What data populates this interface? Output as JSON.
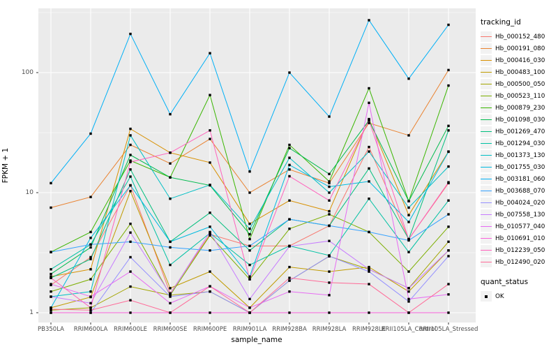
{
  "figure": {
    "y_axis": {
      "title": "FPKM + 1",
      "tick_labels": [
        "100",
        "10",
        "1"
      ],
      "tick_values": [
        100,
        10,
        1
      ]
    },
    "x_axis": {
      "title": "sample_name"
    },
    "legend": {
      "tracking_title": "tracking_id",
      "quant_title": "quant_status",
      "quant_items": [
        {
          "label": "OK",
          "marker": "black-square"
        }
      ]
    },
    "colors": {
      "panel_bg": "#EBEBEB",
      "grid_major": "#FFFFFF",
      "grid_minor": "#FFFFFF",
      "axis_text": "#4D4D4D",
      "axis_title": "#000000",
      "point": "#000000",
      "legend_key_bg": "#F2F2F2",
      "tick_mark": "#333333"
    }
  },
  "chart_data": {
    "type": "line",
    "title": "",
    "xlabel": "sample_name",
    "ylabel": "FPKM + 1",
    "y_scale": "log10",
    "ylim": [
      1,
      320
    ],
    "grid": true,
    "legend_position": "right",
    "point_marker": "black square (quant_status = OK)",
    "categories": [
      "PB350LA",
      "RRIM600LA",
      "RRIM600LE",
      "RRIM600SE",
      "RRIM600PE",
      "RRIM901LA",
      "RRIM928BA",
      "RRIM928LA",
      "RRIM928LE",
      "RRII105LA_Control",
      "RRII105LA_Stressed"
    ],
    "series": [
      {
        "name": "Hb_000152_480",
        "color": "#F8766D",
        "values": [
          1.7,
          2.9,
          11.5,
          1.45,
          4.5,
          3.6,
          3.6,
          5.3,
          24,
          4.1,
          12.0
        ]
      },
      {
        "name": "Hb_000191_080",
        "color": "#EA8331",
        "values": [
          7.5,
          9.2,
          25,
          17.5,
          28,
          10,
          15.6,
          12,
          38,
          30,
          105
        ]
      },
      {
        "name": "Hb_000416_030",
        "color": "#D89000",
        "values": [
          2.0,
          2.3,
          34,
          21.5,
          17.8,
          5.5,
          8.6,
          7.0,
          41,
          6.5,
          22
        ]
      },
      {
        "name": "Hb_000483_100",
        "color": "#C09B00",
        "values": [
          1.1,
          1.35,
          10.3,
          1.6,
          2.2,
          1.1,
          2.4,
          2.2,
          2.4,
          1.5,
          3.3
        ]
      },
      {
        "name": "Hb_000500_050",
        "color": "#A3A500",
        "values": [
          1.05,
          1.1,
          1.65,
          1.4,
          1.5,
          1.0,
          1.85,
          2.95,
          2.3,
          1.6,
          3.9
        ]
      },
      {
        "name": "Hb_000523_110",
        "color": "#7CAE00",
        "values": [
          1.5,
          1.9,
          5.5,
          1.4,
          4.4,
          1.9,
          5.0,
          6.6,
          4.7,
          2.2,
          5.2
        ]
      },
      {
        "name": "Hb_000879_230",
        "color": "#39B600",
        "values": [
          3.2,
          4.7,
          18.5,
          13.4,
          65,
          4.1,
          25,
          12.4,
          74,
          8.5,
          78
        ]
      },
      {
        "name": "Hb_001098_030",
        "color": "#00BB4E",
        "values": [
          2.1,
          3.5,
          20.6,
          13.4,
          11.5,
          4.5,
          23.5,
          14.3,
          40,
          8.5,
          36
        ]
      },
      {
        "name": "Hb_001269_470",
        "color": "#00BF7D",
        "values": [
          1.95,
          2.8,
          15.6,
          3.9,
          6.8,
          3.3,
          6.0,
          5.3,
          15.9,
          4.1,
          33
        ]
      },
      {
        "name": "Hb_001294_030",
        "color": "#00C1A3",
        "values": [
          2.3,
          3.7,
          13.6,
          2.5,
          4.6,
          2.5,
          3.6,
          3.0,
          8.9,
          3.2,
          8.6
        ]
      },
      {
        "name": "Hb_001373_130",
        "color": "#00BFC4",
        "values": [
          1.36,
          1.5,
          30,
          8.9,
          11.6,
          5.0,
          19.5,
          10,
          22,
          7.5,
          16.5
        ]
      },
      {
        "name": "Hb_001755_030",
        "color": "#00BAE0",
        "values": [
          1.1,
          4.2,
          11.5,
          3.9,
          5.2,
          2.0,
          17,
          11.2,
          12.4,
          5.7,
          21.9
        ]
      },
      {
        "name": "Hb_003181_060",
        "color": "#00B0F6",
        "values": [
          12,
          31,
          210,
          45,
          145,
          15,
          100,
          43,
          273,
          89,
          250
        ]
      },
      {
        "name": "Hb_003688_070",
        "color": "#35A2FF",
        "values": [
          3.2,
          3.7,
          3.9,
          3.5,
          3.3,
          3.6,
          6.0,
          5.3,
          4.7,
          4.0,
          6.6
        ]
      },
      {
        "name": "Hb_004024_020",
        "color": "#9590FF",
        "values": [
          1.0,
          1.0,
          2.9,
          1.36,
          1.5,
          1.0,
          1.85,
          2.96,
          2.2,
          1.24,
          2.96
        ]
      },
      {
        "name": "Hb_007558_130",
        "color": "#C77CFF",
        "values": [
          1.36,
          1.2,
          4.65,
          1.43,
          4.7,
          1.3,
          3.57,
          3.96,
          2.3,
          1.6,
          3.3
        ]
      },
      {
        "name": "Hb_010577_040",
        "color": "#E76BF3",
        "values": [
          1.73,
          1.36,
          2.2,
          1.2,
          1.66,
          1.1,
          1.5,
          1.4,
          56,
          1.3,
          1.42
        ]
      },
      {
        "name": "Hb_010691_010",
        "color": "#FA62DB",
        "values": [
          1.0,
          1.0,
          1.0,
          1.0,
          1.0,
          1.0,
          1.0,
          1.0,
          1.0,
          1.0,
          1.0
        ]
      },
      {
        "name": "Hb_012239_050",
        "color": "#FF62BC",
        "values": [
          1.95,
          1.1,
          18,
          21.5,
          33,
          1.9,
          13.7,
          8.6,
          40,
          4.1,
          12.2
        ]
      },
      {
        "name": "Hb_012490_020",
        "color": "#FF6A98",
        "values": [
          1.07,
          1.05,
          1.27,
          1.0,
          1.66,
          1.0,
          1.95,
          1.78,
          1.73,
          1.0,
          1.73
        ]
      }
    ]
  }
}
